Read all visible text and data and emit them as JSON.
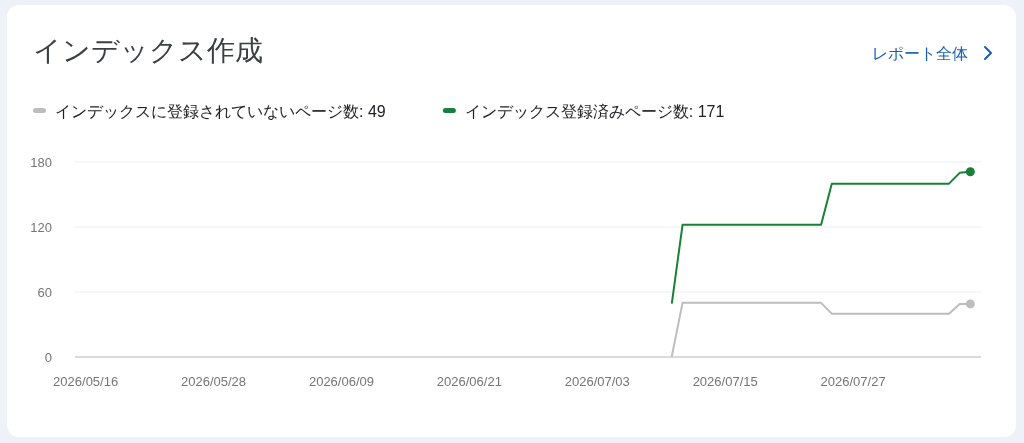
{
  "chart_data": {
    "type": "line",
    "title": "インデックス作成",
    "annotations": [
      "レポート全体"
    ],
    "xlim": [
      "2026-05-15",
      "2026-08-08"
    ],
    "xticks": [
      {
        "value": "2026-05-16",
        "label": "2026/05/16"
      },
      {
        "value": "2026-05-28",
        "label": "2026/05/28"
      },
      {
        "value": "2026-06-09",
        "label": "2026/06/09"
      },
      {
        "value": "2026-06-21",
        "label": "2026/06/21"
      },
      {
        "value": "2026-07-03",
        "label": "2026/07/03"
      },
      {
        "value": "2026-07-15",
        "label": "2026/07/15"
      },
      {
        "value": "2026-07-27",
        "label": "2026/07/27"
      }
    ],
    "ylim": [
      0,
      180
    ],
    "yticks": [
      0,
      60,
      120,
      180
    ],
    "grid": "y",
    "legend": "top",
    "series": [
      {
        "name": "インデックスに登録されていないページ数: 49",
        "color": "#bdbdbd",
        "x": [
          "2026-07-10",
          "2026-07-11",
          "2026-07-24",
          "2026-07-25",
          "2026-08-05",
          "2026-08-06",
          "2026-08-07"
        ],
        "values": [
          1,
          50,
          50,
          40,
          40,
          49,
          49
        ]
      },
      {
        "name": "インデックス登録済みページ数: 171",
        "color": "#188038",
        "x": [
          "2026-07-10",
          "2026-07-11",
          "2026-07-24",
          "2026-07-25",
          "2026-08-05",
          "2026-08-06",
          "2026-08-07"
        ],
        "values": [
          50,
          122,
          122,
          160,
          160,
          170,
          171
        ]
      }
    ]
  }
}
